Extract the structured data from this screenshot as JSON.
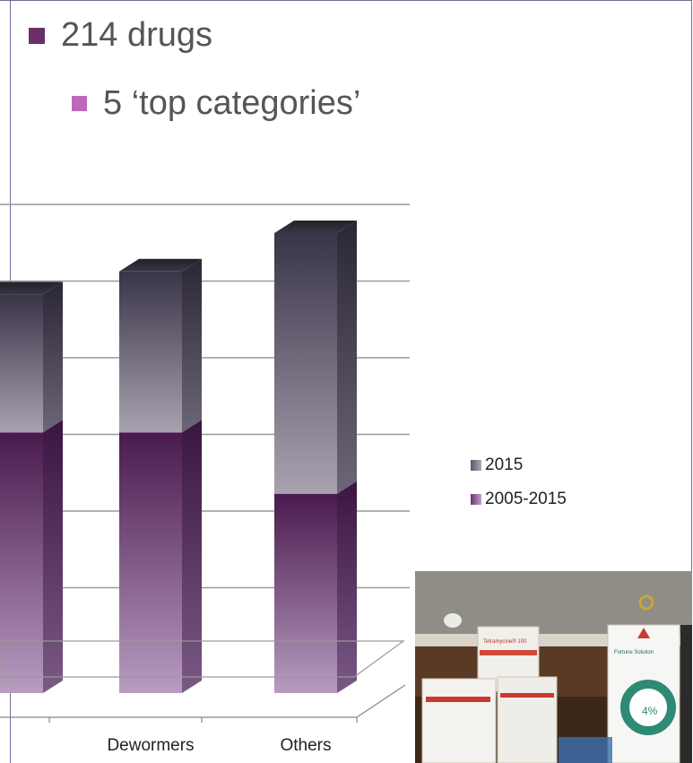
{
  "bullets": {
    "level1": "214 drugs",
    "level2": "5 ‘top categories’"
  },
  "colors": {
    "frame": "#7a6a9a",
    "bullet1": "#6a2f6a",
    "bullet2": "#c068b8",
    "series_2015": "#6e6878",
    "series_2005_2015": "#7b4a7e"
  },
  "chart_data": {
    "type": "bar",
    "stacked": true,
    "three_d": true,
    "categories": [
      "",
      "Dewormers",
      "Others"
    ],
    "series": [
      {
        "name": "2005-2015",
        "values": [
          3.4,
          3.4,
          2.6
        ]
      },
      {
        "name": "2015",
        "values": [
          1.8,
          2.1,
          3.4
        ]
      }
    ],
    "ylim": [
      0,
      6
    ],
    "grid": true,
    "legend": "right",
    "xlabel": "",
    "ylabel": ""
  },
  "photo": {
    "box_labels": [
      "Tetramycine® 100",
      "Fortune Solution",
      "4%"
    ]
  }
}
